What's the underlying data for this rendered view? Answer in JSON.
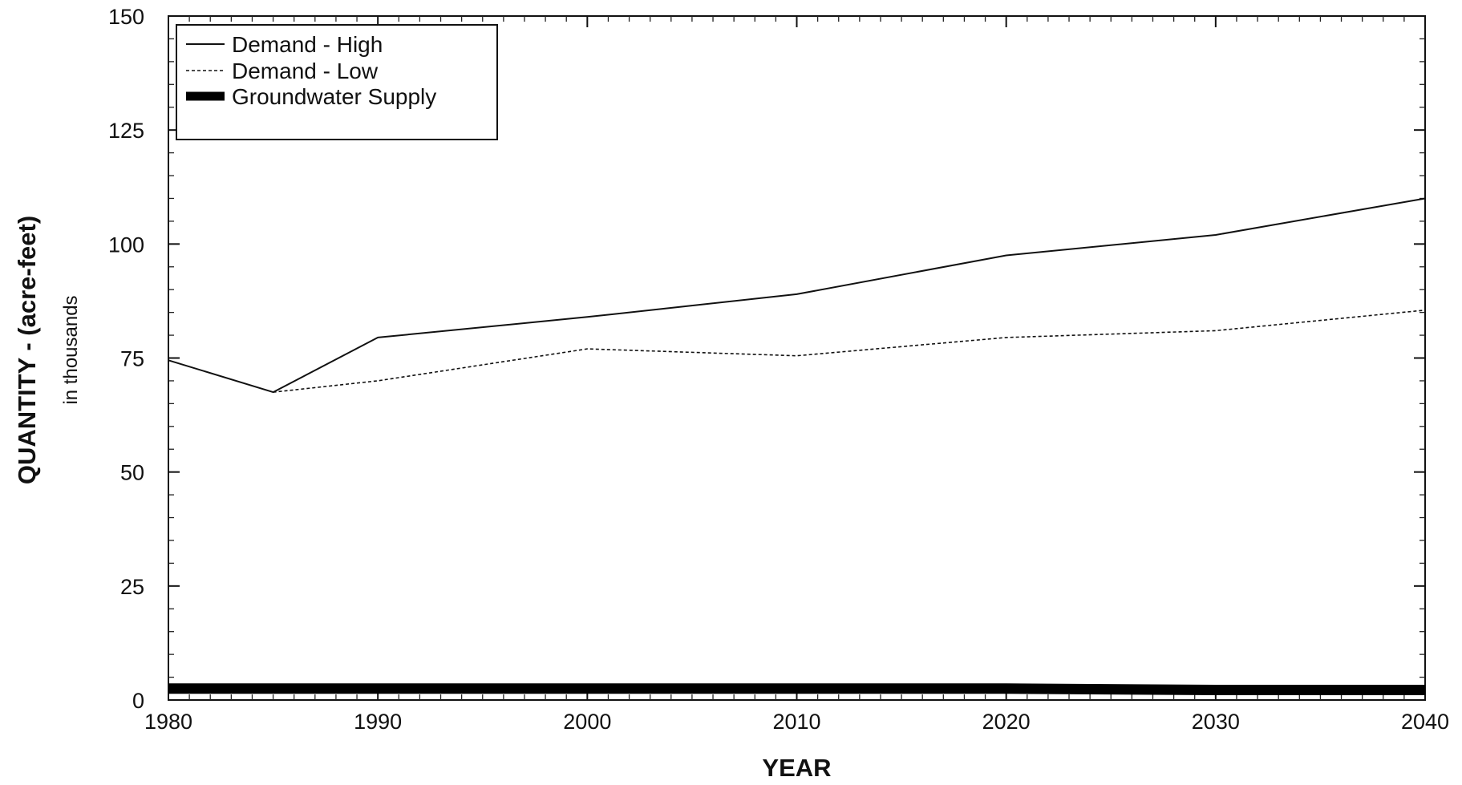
{
  "chart_data": {
    "type": "line",
    "xlabel": "YEAR",
    "ylabel": "QUANTITY - (acre-feet)",
    "ylabel_sub": "in thousands",
    "xlim": [
      1980,
      2040
    ],
    "ylim": [
      0,
      150
    ],
    "x_ticks": [
      1980,
      1990,
      2000,
      2010,
      2020,
      2030,
      2040
    ],
    "y_ticks": [
      0,
      25,
      50,
      75,
      100,
      125,
      150
    ],
    "x_minor_step": 1,
    "y_minor_step": 5,
    "grid": false,
    "legend_position": "top-left",
    "series": [
      {
        "name": "Demand - High",
        "style": "solid-thin",
        "color": "#111111",
        "x": [
          1980,
          1985,
          1990,
          2000,
          2010,
          2020,
          2030,
          2040
        ],
        "y": [
          74.5,
          67.5,
          79.5,
          84,
          89,
          97.5,
          102,
          110
        ]
      },
      {
        "name": "Demand - Low",
        "style": "dashed-thin",
        "color": "#111111",
        "x": [
          1985,
          1990,
          2000,
          2010,
          2020,
          2030,
          2040
        ],
        "y": [
          67.5,
          70,
          77,
          75.5,
          79.5,
          81,
          85.5
        ]
      },
      {
        "name": "Groundwater Supply",
        "style": "solid-thick",
        "color": "#000000",
        "x": [
          1980,
          1990,
          2000,
          2010,
          2020,
          2030,
          2040
        ],
        "y": [
          2.5,
          2.5,
          2.5,
          2.5,
          2.5,
          2.2,
          2.2
        ]
      }
    ]
  }
}
